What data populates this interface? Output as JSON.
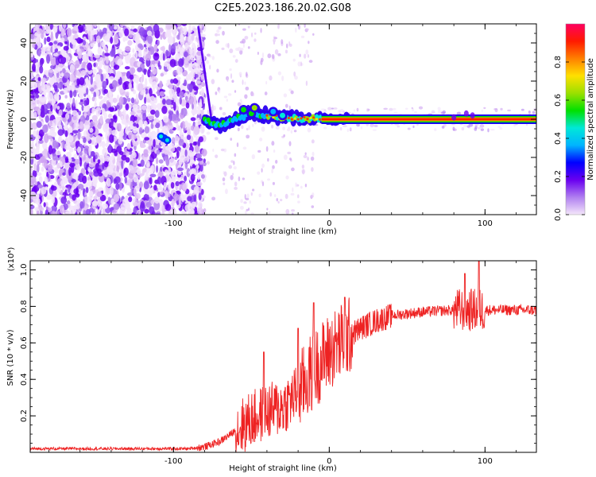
{
  "title": "C2E5.2023.186.20.02.G08",
  "chart_data": [
    {
      "type": "heatmap",
      "name": "spectrogram",
      "xlabel": "Height of straight line (km)",
      "ylabel": "Frequency (Hz)",
      "xlim": [
        -192,
        133
      ],
      "ylim": [
        -50,
        50
      ],
      "xticks": [
        -100,
        0,
        100
      ],
      "yticks": [
        -40,
        -20,
        0,
        20,
        40
      ],
      "colorbar": {
        "label": "Normalized spectral amplitude",
        "range": [
          0.0,
          1.0
        ],
        "ticks": [
          0.0,
          0.2,
          0.4,
          0.6,
          0.8
        ],
        "colors": [
          "#f4e6fa",
          "#b07ff0",
          "#6a00f0",
          "#0000ff",
          "#00b4ff",
          "#00e8d8",
          "#00e000",
          "#9be000",
          "#ffe000",
          "#ff8000",
          "#ff1a00",
          "#ff0060"
        ]
      },
      "ridge": [
        {
          "x": -80,
          "y": -1
        },
        {
          "x": -70,
          "y": -3
        },
        {
          "x": -60,
          "y": 0
        },
        {
          "x": -50,
          "y": 3
        },
        {
          "x": -40,
          "y": 2
        },
        {
          "x": -30,
          "y": 1
        },
        {
          "x": -20,
          "y": 0.5
        },
        {
          "x": 0,
          "y": 0
        },
        {
          "x": 50,
          "y": 0
        },
        {
          "x": 133,
          "y": 0
        }
      ]
    },
    {
      "type": "line",
      "name": "snr",
      "xlabel": "Height of straight line (km)",
      "ylabel": "SNR (10 * v/v)",
      "scale_label": "(x10⁴)",
      "xlim": [
        -192,
        133
      ],
      "ylim": [
        0,
        1.05
      ],
      "xticks": [
        -100,
        0,
        100
      ],
      "yticks": [
        0.2,
        0.4,
        0.6,
        0.8,
        1.0
      ],
      "color": "#ee2222",
      "envelope": [
        {
          "x": -192,
          "y": 0.02
        },
        {
          "x": -90,
          "y": 0.02
        },
        {
          "x": -80,
          "y": 0.03
        },
        {
          "x": -70,
          "y": 0.06
        },
        {
          "x": -60,
          "y": 0.12
        },
        {
          "x": -50,
          "y": 0.18
        },
        {
          "x": -40,
          "y": 0.22
        },
        {
          "x": -30,
          "y": 0.25
        },
        {
          "x": -20,
          "y": 0.33
        },
        {
          "x": -10,
          "y": 0.45
        },
        {
          "x": 0,
          "y": 0.55
        },
        {
          "x": 10,
          "y": 0.62
        },
        {
          "x": 20,
          "y": 0.68
        },
        {
          "x": 30,
          "y": 0.72
        },
        {
          "x": 40,
          "y": 0.75
        },
        {
          "x": 60,
          "y": 0.77
        },
        {
          "x": 80,
          "y": 0.78
        },
        {
          "x": 100,
          "y": 0.78
        },
        {
          "x": 133,
          "y": 0.78
        }
      ],
      "peaks": [
        {
          "x": -42,
          "y": 0.55
        },
        {
          "x": -20,
          "y": 0.68
        },
        {
          "x": -10,
          "y": 0.82
        },
        {
          "x": 10,
          "y": 0.85
        },
        {
          "x": 87,
          "y": 0.98
        },
        {
          "x": 96,
          "y": 1.05
        }
      ]
    }
  ]
}
